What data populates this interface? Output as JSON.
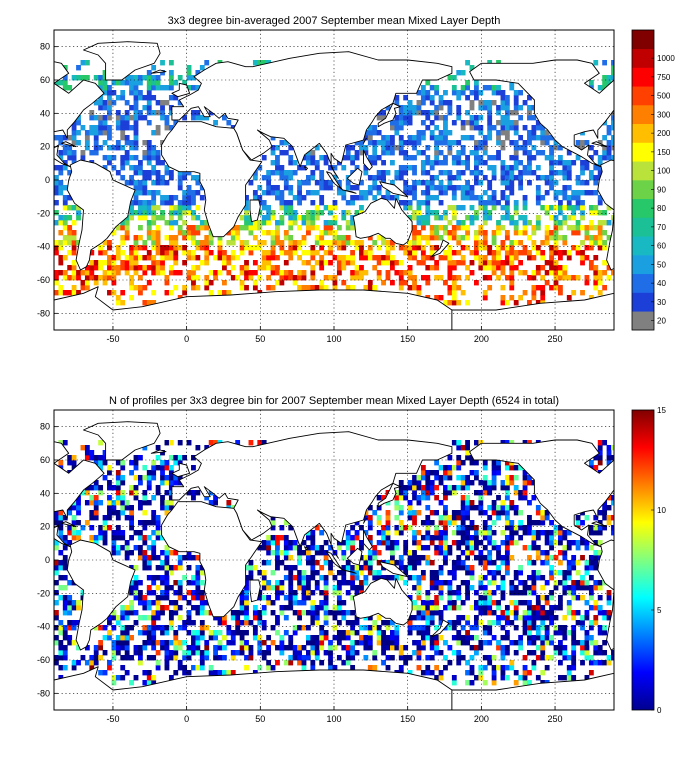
{
  "panels": [
    {
      "id": "mld",
      "title": "3x3 degree bin-averaged 2007 September mean Mixed Layer Depth",
      "x_ticks": [
        -50,
        0,
        50,
        100,
        150,
        200,
        250
      ],
      "y_ticks": [
        80,
        60,
        40,
        20,
        0,
        -20,
        -40,
        -60,
        -80
      ],
      "xlim": [
        -90,
        290
      ],
      "ylim": [
        -90,
        90
      ],
      "colorbar": {
        "type": "discrete",
        "labels": [
          "20",
          "30",
          "40",
          "50",
          "60",
          "70",
          "80",
          "90",
          "100",
          "150",
          "200",
          "300",
          "500",
          "750",
          "1000"
        ],
        "colors": [
          "#808080",
          "#1c3fd8",
          "#1f6ee8",
          "#1aa0e0",
          "#19b9c4",
          "#1bc096",
          "#27c86a",
          "#6cd348",
          "#b9e23b",
          "#ffff00",
          "#ffbf00",
          "#ff8000",
          "#ff4000",
          "#ff0000",
          "#c00000",
          "#800000"
        ]
      }
    },
    {
      "id": "count",
      "title": "N of profiles per 3x3 degree bin for 2007 September mean Mixed Layer Depth  (6524 in total)",
      "x_ticks": [
        -50,
        0,
        50,
        100,
        150,
        200,
        250
      ],
      "y_ticks": [
        80,
        60,
        40,
        20,
        0,
        -20,
        -40,
        -60,
        -80
      ],
      "xlim": [
        -90,
        290
      ],
      "ylim": [
        -90,
        90
      ],
      "colorbar": {
        "type": "continuous",
        "labels": [
          "0",
          "5",
          "10",
          "15"
        ],
        "range": [
          0,
          15
        ]
      }
    }
  ]
}
